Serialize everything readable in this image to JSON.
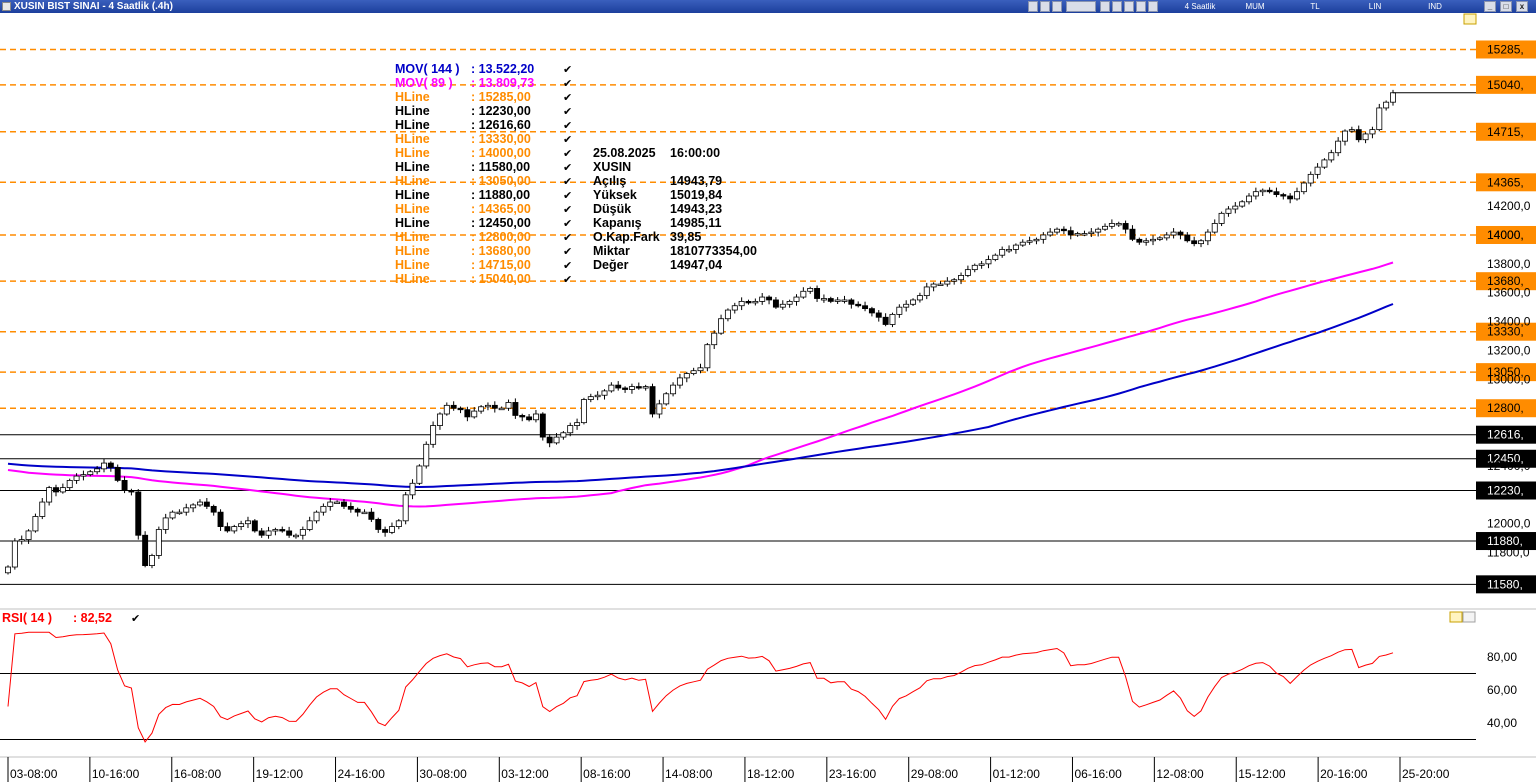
{
  "window": {
    "title": "XUSIN BIST SINAI - 4 Saatlik (.4h)",
    "toolbar": [
      "4 Saatlik",
      "MUM",
      "TL",
      "LIN",
      "IND"
    ],
    "buttons": [
      "_",
      "□",
      "x"
    ]
  },
  "price_panel": {
    "indicators": [
      {
        "label": "MOV( 144 )",
        "value": ": 13.522,20",
        "color": "#0000c8"
      },
      {
        "label": "MOV( 89 )",
        "value": ": 13.809,73",
        "color": "#ff00ff"
      }
    ],
    "hlines": [
      {
        "label": "HLine",
        "value": ": 15285,00",
        "color": "#ff8c00"
      },
      {
        "label": "HLine",
        "value": ": 12230,00",
        "color": "#000000"
      },
      {
        "label": "HLine",
        "value": ": 12616,60",
        "color": "#000000"
      },
      {
        "label": "HLine",
        "value": ": 13330,00",
        "color": "#ff8c00"
      },
      {
        "label": "HLine",
        "value": ": 14000,00",
        "color": "#ff8c00"
      },
      {
        "label": "HLine",
        "value": ": 11580,00",
        "color": "#000000"
      },
      {
        "label": "HLine",
        "value": ": 13050,00",
        "color": "#ff8c00"
      },
      {
        "label": "HLine",
        "value": ": 11880,00",
        "color": "#000000"
      },
      {
        "label": "HLine",
        "value": ": 14365,00",
        "color": "#ff8c00"
      },
      {
        "label": "HLine",
        "value": ": 12450,00",
        "color": "#000000"
      },
      {
        "label": "HLine",
        "value": ": 12800,00",
        "color": "#ff8c00"
      },
      {
        "label": "HLine",
        "value": ": 13680,00",
        "color": "#ff8c00"
      },
      {
        "label": "HLine",
        "value": ": 14715,00",
        "color": "#ff8c00"
      },
      {
        "label": "HLine",
        "value": ": 15040,00",
        "color": "#ff8c00"
      }
    ],
    "tooltip": [
      {
        "k": "25.08.2025",
        "v": "16:00:00"
      },
      {
        "k": "XUSIN",
        "v": ""
      },
      {
        "k": "Açılış",
        "v": "14943,79"
      },
      {
        "k": "Yüksek",
        "v": "15019,84"
      },
      {
        "k": "Düşük",
        "v": "14943,23"
      },
      {
        "k": "Kapanış",
        "v": "14985,11"
      },
      {
        "k": "O.Kap.Fark",
        "v": "39,85"
      },
      {
        "k": "Miktar",
        "v": "1810773354,00"
      },
      {
        "k": "Değer",
        "v": "14947,04"
      }
    ]
  },
  "rsi_panel": {
    "label": "RSI( 14 )",
    "value": ": 82,52",
    "color": "#ff0000",
    "ticks": [
      "80,00",
      "60,00",
      "40,00"
    ]
  },
  "chart_data": {
    "type": "candlestick",
    "interval": "4h",
    "y_axis_ticks": [
      "14200,0",
      "14000,",
      "13800,0",
      "13600,0",
      "13400,0",
      "13200,0",
      "13000,0",
      "12400,0",
      "12000,0",
      "11800,0"
    ],
    "x_axis_ticks": [
      "03-08:00",
      "10-16:00",
      "16-08:00",
      "19-12:00",
      "24-16:00",
      "30-08:00",
      "03-12:00",
      "08-16:00",
      "14-08:00",
      "18-12:00",
      "23-16:00",
      "29-08:00",
      "01-12:00",
      "06-16:00",
      "12-08:00",
      "15-12:00",
      "20-16:00",
      "25-20:00"
    ],
    "price_range": [
      11520,
      15420
    ],
    "level_tags": [
      {
        "value": 15285,
        "label": "15285,",
        "style": "dashed",
        "color": "#ff8c00"
      },
      {
        "value": 15040,
        "label": "15040,",
        "style": "dashed",
        "color": "#ff8c00"
      },
      {
        "value": 14715,
        "label": "14715,",
        "style": "dashed",
        "color": "#ff8c00"
      },
      {
        "value": 14365,
        "label": "14365,",
        "style": "dashed",
        "color": "#ff8c00"
      },
      {
        "value": 14000,
        "label": "14000,",
        "style": "dashed",
        "color": "#ff8c00"
      },
      {
        "value": 13680,
        "label": "13680,",
        "style": "dashed",
        "color": "#ff8c00"
      },
      {
        "value": 13330,
        "label": "13330,",
        "style": "dashed",
        "color": "#ff8c00"
      },
      {
        "value": 13050,
        "label": "13050,",
        "style": "dashed",
        "color": "#ff8c00"
      },
      {
        "value": 12800,
        "label": "12800,",
        "style": "dashed",
        "color": "#ff8c00"
      },
      {
        "value": 12616.6,
        "label": "12616,",
        "style": "solid",
        "color": "#000000"
      },
      {
        "value": 12450,
        "label": "12450,",
        "style": "solid",
        "color": "#000000"
      },
      {
        "value": 12230,
        "label": "12230,",
        "style": "solid",
        "color": "#000000"
      },
      {
        "value": 11880,
        "label": "11880,",
        "style": "solid",
        "color": "#000000"
      },
      {
        "value": 11580,
        "label": "11580,",
        "style": "solid",
        "color": "#000000"
      }
    ],
    "last_price": 14985.11,
    "closes": [
      11700,
      11880,
      11890,
      11950,
      12050,
      12150,
      12250,
      12220,
      12250,
      12300,
      12330,
      12340,
      12360,
      12380,
      12420,
      12390,
      12300,
      12230,
      12220,
      11920,
      11710,
      11780,
      11960,
      12040,
      12080,
      12080,
      12110,
      12130,
      12150,
      12120,
      12080,
      11980,
      11950,
      11980,
      12000,
      12020,
      11950,
      11920,
      11950,
      11960,
      11950,
      11920,
      11920,
      11960,
      12020,
      12080,
      12120,
      12150,
      12150,
      12120,
      12100,
      12080,
      12080,
      12030,
      11960,
      11940,
      11980,
      12020,
      12200,
      12280,
      12400,
      12550,
      12680,
      12760,
      12820,
      12800,
      12790,
      12740,
      12780,
      12810,
      12820,
      12800,
      12800,
      12840,
      12750,
      12740,
      12720,
      12760,
      12600,
      12560,
      12600,
      12630,
      12680,
      12700,
      12860,
      12880,
      12890,
      12920,
      12960,
      12940,
      12930,
      12950,
      12940,
      12950,
      12760,
      12830,
      12900,
      12960,
      13010,
      13040,
      13060,
      13080,
      13240,
      13320,
      13420,
      13480,
      13510,
      13540,
      13530,
      13540,
      13570,
      13550,
      13500,
      13520,
      13540,
      13570,
      13610,
      13630,
      13560,
      13560,
      13540,
      13550,
      13550,
      13520,
      13510,
      13490,
      13460,
      13430,
      13380,
      13450,
      13500,
      13520,
      13550,
      13580,
      13640,
      13660,
      13660,
      13680,
      13690,
      13720,
      13760,
      13790,
      13800,
      13830,
      13860,
      13900,
      13900,
      13930,
      13950,
      13960,
      13970,
      14000,
      14020,
      14040,
      14030,
      14000,
      14010,
      14010,
      14020,
      14040,
      14060,
      14080,
      14080,
      14040,
      13970,
      13950,
      13960,
      13970,
      13980,
      14000,
      14020,
      14000,
      13960,
      13940,
      13960,
      14020,
      14080,
      14150,
      14180,
      14200,
      14230,
      14270,
      14300,
      14310,
      14300,
      14280,
      14270,
      14250,
      14300,
      14360,
      14420,
      14470,
      14520,
      14570,
      14650,
      14720,
      14730,
      14660,
      14700,
      14730,
      14880,
      14920,
      14985.11
    ],
    "ma": [
      {
        "name": "MOV( 144 )",
        "color": "#0000c8",
        "last": 13522.2
      },
      {
        "name": "MOV( 89 )",
        "color": "#ff00ff",
        "last": 13809.73
      }
    ],
    "rsi": {
      "period": 14,
      "last": 82.52,
      "levels": [
        70,
        30
      ],
      "range": [
        20,
        100
      ]
    }
  }
}
